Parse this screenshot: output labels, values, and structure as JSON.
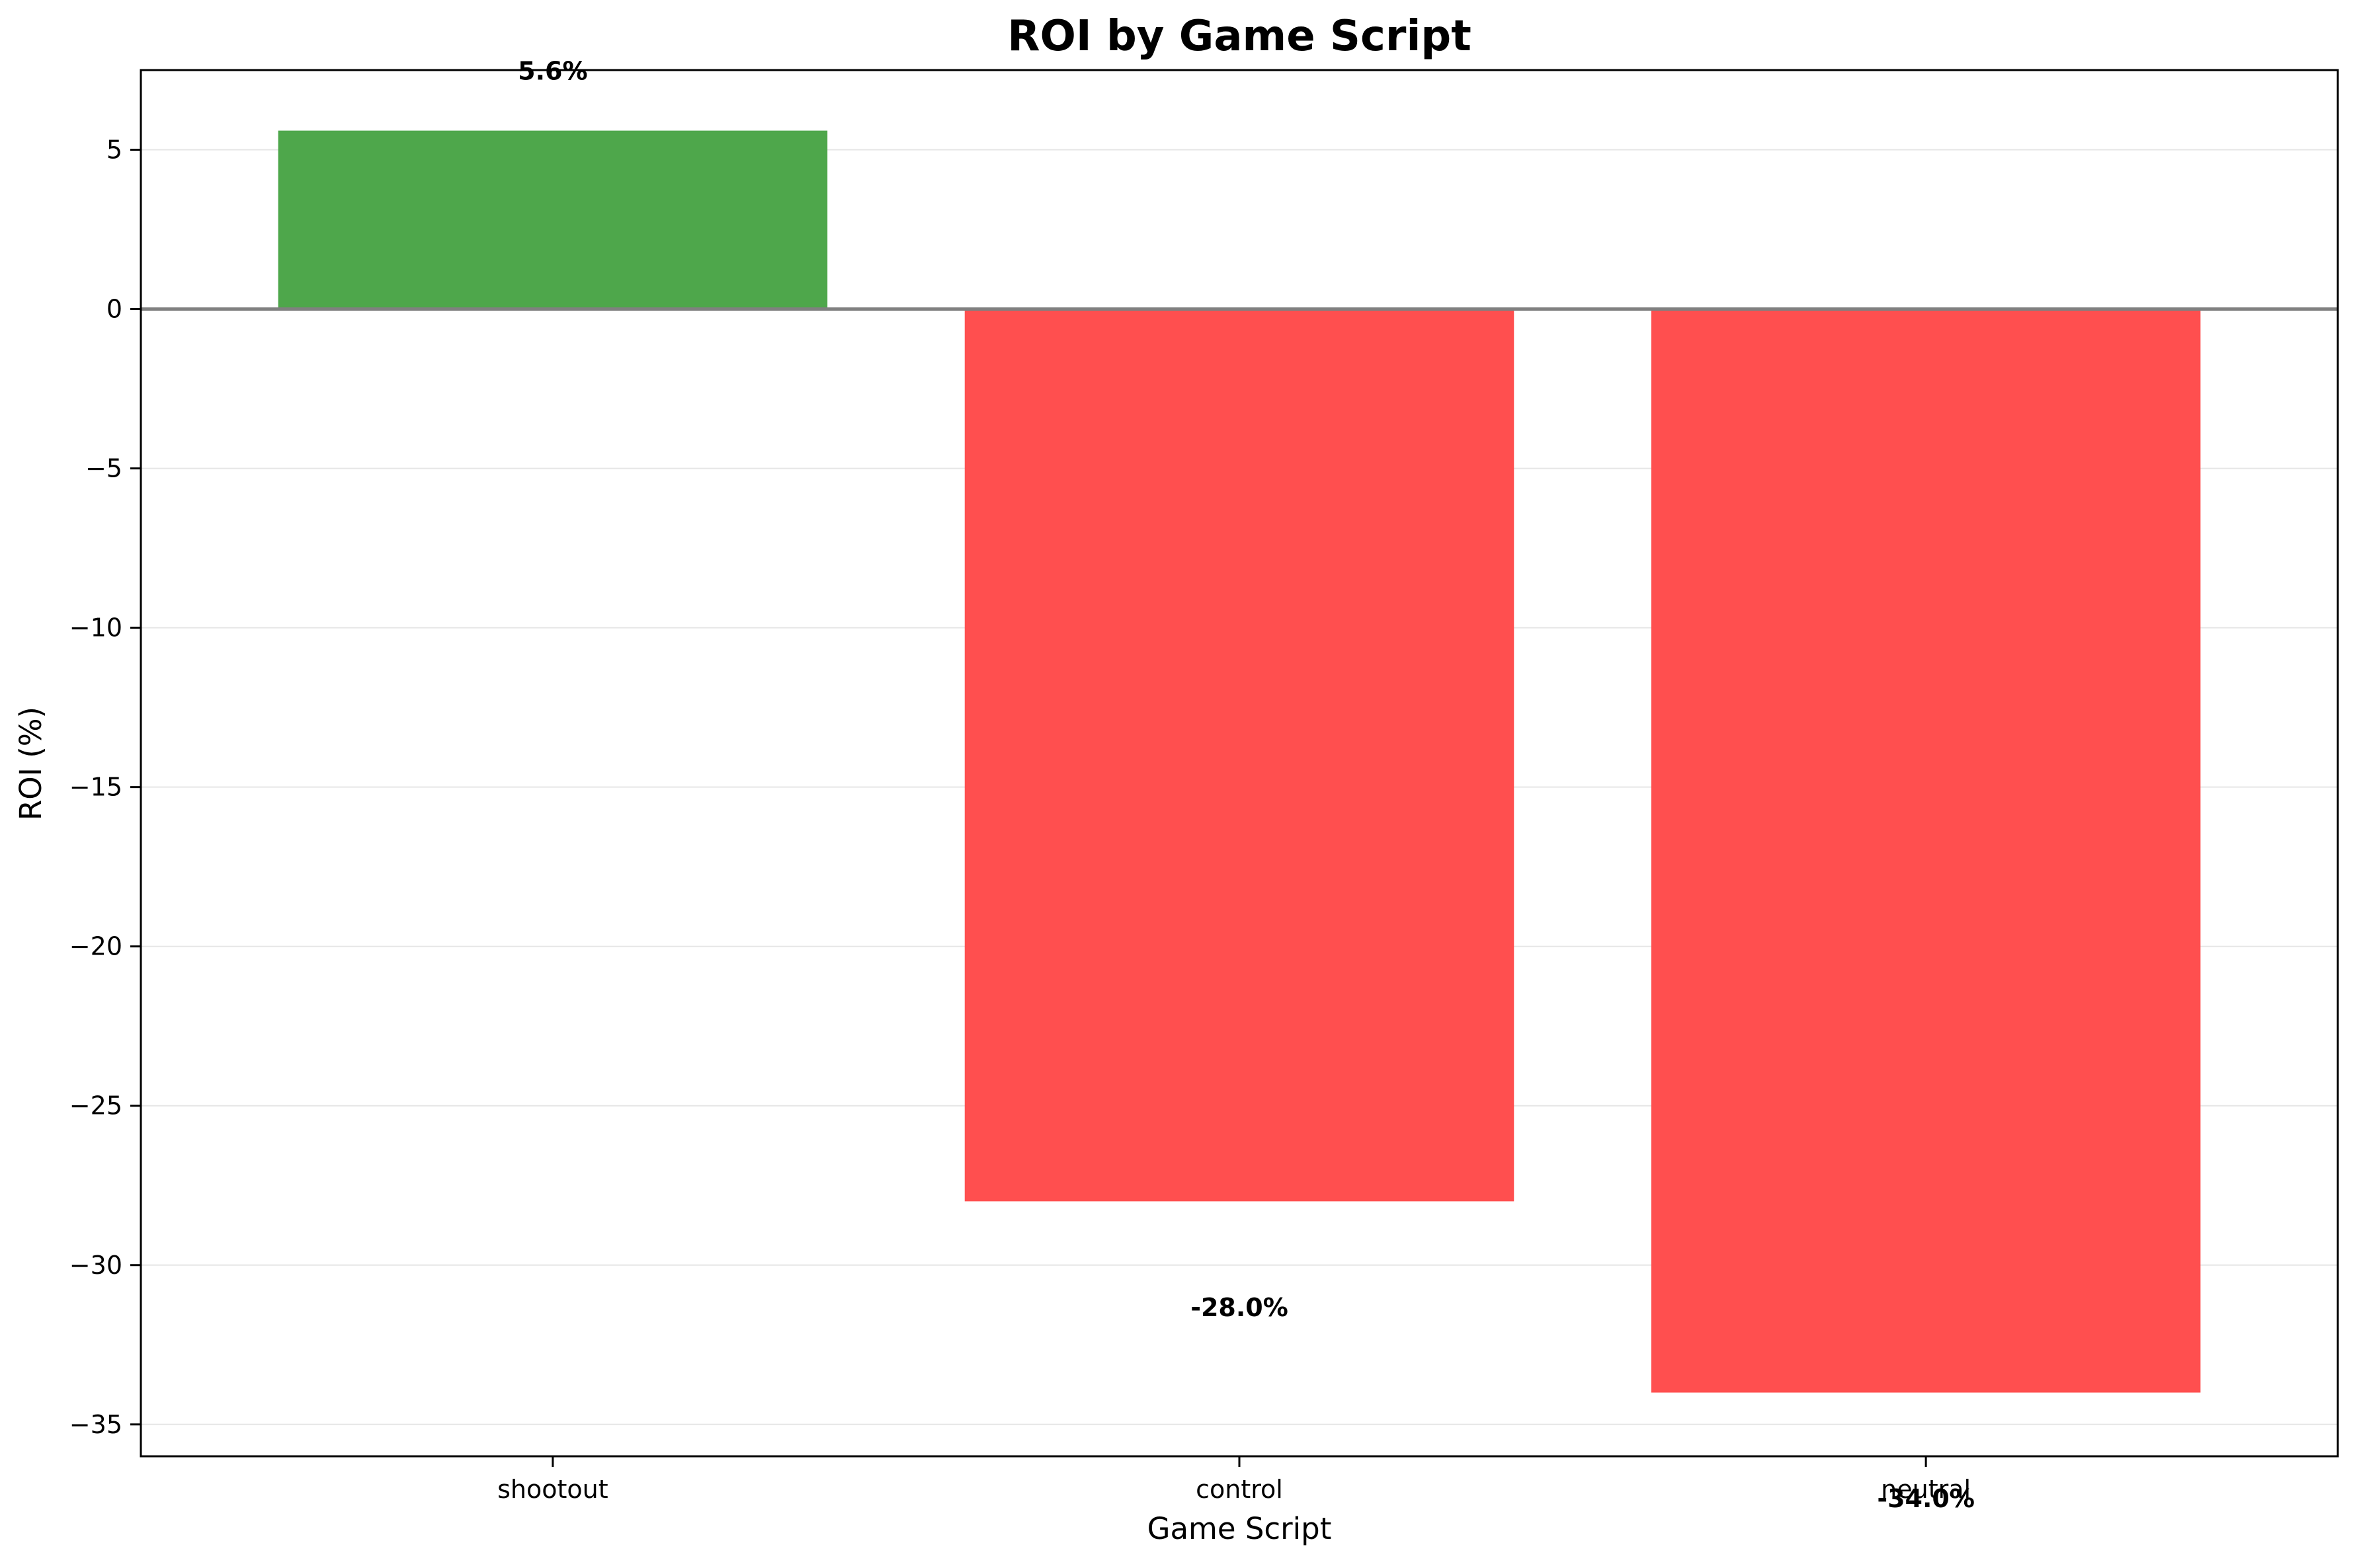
{
  "chart_data": {
    "type": "bar",
    "title": "ROI by Game Script",
    "xlabel": "Game Script",
    "ylabel": "ROI (%)",
    "categories": [
      "shootout",
      "control",
      "neutral"
    ],
    "values": [
      5.6,
      -28.0,
      -34.0
    ],
    "data_labels": [
      "5.6%",
      "-28.0%",
      "-34.0%"
    ],
    "ylim": [
      -36,
      7.5
    ],
    "yticks": [
      5,
      0,
      -5,
      -10,
      -15,
      -20,
      -25,
      -30,
      -35
    ],
    "ytick_labels": [
      "5",
      "0",
      "−5",
      "−10",
      "−15",
      "−20",
      "−25",
      "−30",
      "−35"
    ],
    "grid": "y",
    "legend": "none",
    "colors": {
      "positive": "#4ea74b",
      "negative": "#ff4f4f",
      "zero_line": "#808080",
      "grid": "#e6e6e6"
    }
  }
}
